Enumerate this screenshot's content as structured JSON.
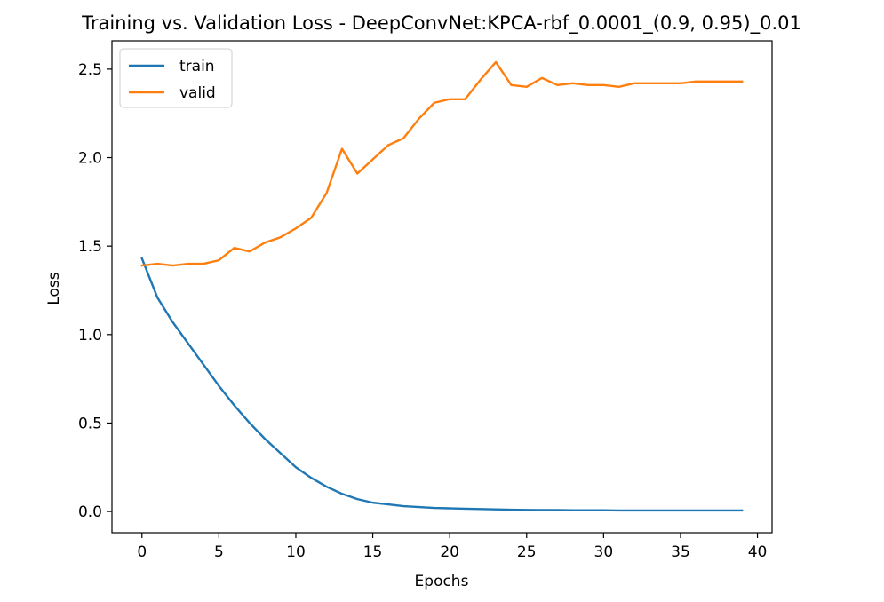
{
  "chart_data": {
    "type": "line",
    "title": "Training vs. Validation Loss - DeepConvNet:KPCA-rbf_0.0001_(0.9, 0.95)_0.01",
    "xlabel": "Epochs",
    "ylabel": "Loss",
    "xlim": [
      -1.95,
      40.95
    ],
    "ylim": [
      -0.12,
      2.66
    ],
    "xticks": [
      0,
      5,
      10,
      15,
      20,
      25,
      30,
      35,
      40
    ],
    "xtick_labels": [
      "0",
      "5",
      "10",
      "15",
      "20",
      "25",
      "30",
      "35",
      "40"
    ],
    "yticks": [
      0.0,
      0.5,
      1.0,
      1.5,
      2.0,
      2.5
    ],
    "ytick_labels": [
      "0.0",
      "0.5",
      "1.0",
      "1.5",
      "2.0",
      "2.5"
    ],
    "grid": false,
    "legend_position": "top-left",
    "x": [
      0,
      1,
      2,
      3,
      4,
      5,
      6,
      7,
      8,
      9,
      10,
      11,
      12,
      13,
      14,
      15,
      16,
      17,
      18,
      19,
      20,
      21,
      22,
      23,
      24,
      25,
      26,
      27,
      28,
      29,
      30,
      31,
      32,
      33,
      34,
      35,
      36,
      37,
      38,
      39
    ],
    "series": [
      {
        "name": "train",
        "color": "#1f77b4",
        "values": [
          1.43,
          1.21,
          1.07,
          0.95,
          0.83,
          0.71,
          0.6,
          0.5,
          0.41,
          0.33,
          0.25,
          0.19,
          0.14,
          0.1,
          0.07,
          0.05,
          0.04,
          0.03,
          0.025,
          0.02,
          0.018,
          0.016,
          0.014,
          0.012,
          0.01,
          0.009,
          0.008,
          0.008,
          0.007,
          0.007,
          0.007,
          0.006,
          0.006,
          0.006,
          0.006,
          0.006,
          0.006,
          0.006,
          0.006,
          0.006
        ]
      },
      {
        "name": "valid",
        "color": "#ff7f0e",
        "values": [
          1.39,
          1.4,
          1.39,
          1.4,
          1.4,
          1.42,
          1.49,
          1.47,
          1.52,
          1.55,
          1.6,
          1.66,
          1.8,
          2.05,
          1.91,
          1.99,
          2.07,
          2.11,
          2.22,
          2.31,
          2.33,
          2.33,
          2.44,
          2.54,
          2.41,
          2.4,
          2.45,
          2.41,
          2.42,
          2.41,
          2.41,
          2.4,
          2.42,
          2.42,
          2.42,
          2.42,
          2.43,
          2.43,
          2.43,
          2.43
        ]
      }
    ]
  }
}
